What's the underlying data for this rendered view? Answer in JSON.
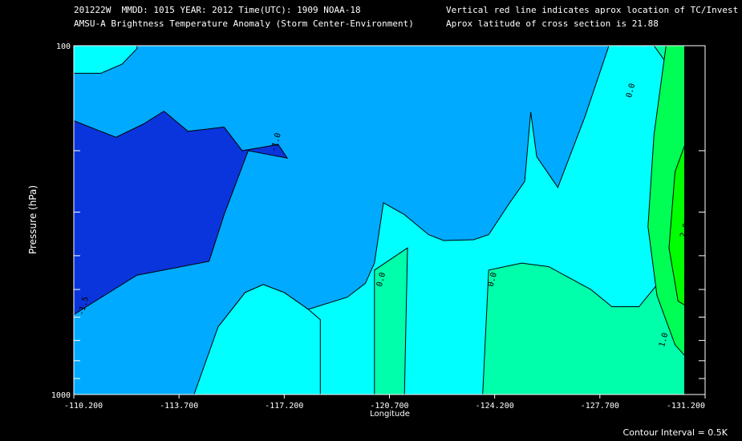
{
  "header": {
    "line1_left": "201222W  MMDD: 1015 YEAR: 2012 Time(UTC): 1909 NOAA-18",
    "line2_left": "AMSU-A Brightness Temperature Anomaly (Storm Center-Environment)",
    "line1_right": "Vertical red line indicates aprox location of TC/Invest",
    "line2_right": "Aprox latitude of cross section is 21.88"
  },
  "footer": {
    "contour_interval": "Contour Interval = 0.5K"
  },
  "colors": {
    "background": "#000000",
    "level_neg15": "#0a35dc",
    "level_neg10": "#00aaff",
    "level_neg05": "#00ffff",
    "level_00": "#00ffaa",
    "level_05": "#00ff55",
    "level_10": "#00ff00",
    "contour": "#000000"
  },
  "chart_data": {
    "type": "contour",
    "title": "AMSU-A Brightness Temperature Anomaly (Storm Center-Environment)",
    "xlabel": "Longitude",
    "ylabel": "Pressure (hPa)",
    "x_tick_labels": [
      "-110.200",
      "-113.700",
      "-117.200",
      "-120.700",
      "-124.200",
      "-127.700",
      "-131.200"
    ],
    "y_tick_labels": [
      "100",
      "1000"
    ],
    "xlim": [
      -110.2,
      -131.2
    ],
    "ylim": [
      1000,
      100
    ],
    "y_scale": "log",
    "contour_interval_K": 0.5,
    "contour_labels": [
      {
        "text": "-1.0",
        "lon": -117.0,
        "p": 190
      },
      {
        "text": "-1.5",
        "lon": -110.6,
        "p": 560
      },
      {
        "text": "0.0",
        "lon": -120.5,
        "p": 470
      },
      {
        "text": "0.0",
        "lon": -124.2,
        "p": 470
      },
      {
        "text": "0.0",
        "lon": -128.8,
        "p": 135
      },
      {
        "text": "2.0",
        "lon": -130.6,
        "p": 340
      },
      {
        "text": "1.0",
        "lon": -129.9,
        "p": 700
      }
    ],
    "regions": [
      {
        "level": "-1.5",
        "color_key": "level_neg15",
        "polygon": [
          [
            -110.2,
            164
          ],
          [
            -110.5,
            168
          ],
          [
            -111.6,
            183
          ],
          [
            -112.5,
            168
          ],
          [
            -113.2,
            154
          ],
          [
            -114.0,
            176
          ],
          [
            -115.2,
            171
          ],
          [
            -115.8,
            200
          ],
          [
            -116.4,
            196
          ],
          [
            -117.0,
            192
          ],
          [
            -117.3,
            210
          ],
          [
            -116.0,
            200
          ],
          [
            -115.2,
            305
          ],
          [
            -114.7,
            415
          ],
          [
            -112.3,
            455
          ],
          [
            -110.2,
            590
          ]
        ]
      },
      {
        "level": "-0.5",
        "color_key": "level_neg05",
        "polygon": [
          [
            -110.2,
            100
          ],
          [
            -110.2,
            120
          ],
          [
            -111.1,
            120
          ],
          [
            -111.8,
            113
          ],
          [
            -112.3,
            102
          ],
          [
            -112.3,
            100
          ]
        ]
      },
      {
        "level": "-0.5",
        "color_key": "level_neg05",
        "polygon": [
          [
            -117.2,
            1000
          ],
          [
            -117.2,
            1000
          ],
          [
            -115.0,
            640
          ],
          [
            -115.9,
            510
          ],
          [
            -116.5,
            484
          ],
          [
            -117.2,
            510
          ],
          [
            -118.0,
            570
          ],
          [
            -119.3,
            526
          ],
          [
            -119.9,
            480
          ],
          [
            -120.2,
            420
          ],
          [
            -120.5,
            282
          ],
          [
            -121.2,
            305
          ],
          [
            -122.0,
            348
          ],
          [
            -122.5,
            362
          ],
          [
            -123.5,
            360
          ],
          [
            -124.0,
            348
          ],
          [
            -124.7,
            282
          ],
          [
            -125.2,
            245
          ],
          [
            -125.4,
            155
          ],
          [
            -125.6,
            208
          ],
          [
            -126.3,
            255
          ],
          [
            -127.2,
            160
          ],
          [
            -128.0,
            100
          ],
          [
            -131.2,
            100
          ],
          [
            -131.2,
            1000
          ]
        ]
      },
      {
        "level": "-0.5",
        "color_key": "level_neg05",
        "polygon": [
          [
            -114.2,
            1000
          ],
          [
            -115.0,
            640
          ],
          [
            -115.9,
            510
          ],
          [
            -116.5,
            484
          ],
          [
            -117.2,
            510
          ],
          [
            -118.0,
            570
          ],
          [
            -118.4,
            610
          ],
          [
            -118.4,
            1000
          ]
        ]
      },
      {
        "level": "0.0",
        "color_key": "level_00",
        "polygon": [
          [
            -120.2,
            1000
          ],
          [
            -120.2,
            440
          ],
          [
            -121.3,
            380
          ],
          [
            -121.2,
            1000
          ]
        ]
      },
      {
        "level": "0.0",
        "color_key": "level_00",
        "polygon": [
          [
            -123.8,
            1000
          ],
          [
            -124.0,
            440
          ],
          [
            -125.1,
            420
          ],
          [
            -126.0,
            430
          ],
          [
            -127.4,
            500
          ],
          [
            -128.1,
            560
          ],
          [
            -129.0,
            560
          ],
          [
            -130.0,
            440
          ],
          [
            -130.0,
            115
          ],
          [
            -129.5,
            100
          ],
          [
            -131.2,
            100
          ],
          [
            -131.2,
            1000
          ]
        ]
      },
      {
        "level": "1.0",
        "color_key": "level_05",
        "polygon": [
          [
            -131.2,
            100
          ],
          [
            -129.9,
            100
          ],
          [
            -129.5,
            180
          ],
          [
            -129.3,
            330
          ],
          [
            -129.6,
            520
          ],
          [
            -130.2,
            720
          ],
          [
            -131.2,
            900
          ]
        ]
      },
      {
        "level": "2.0",
        "color_key": "level_10",
        "polygon": [
          [
            -131.2,
            140
          ],
          [
            -130.7,
            175
          ],
          [
            -130.2,
            230
          ],
          [
            -130.0,
            380
          ],
          [
            -130.3,
            540
          ],
          [
            -131.2,
            600
          ]
        ]
      }
    ]
  }
}
